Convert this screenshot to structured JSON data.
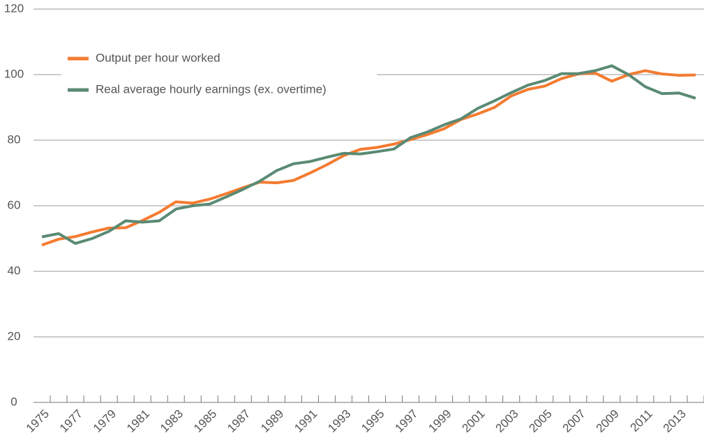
{
  "chart_data": {
    "type": "line",
    "categories": [
      "1975",
      null,
      "1977",
      null,
      "1979",
      null,
      "1981",
      null,
      "1983",
      null,
      "1985",
      null,
      "1987",
      null,
      "1989",
      null,
      "1991",
      null,
      "1993",
      null,
      "1995",
      null,
      "1997",
      null,
      "1999",
      null,
      "2001",
      null,
      "2003",
      null,
      "2005",
      null,
      "2007",
      null,
      "2009",
      null,
      "2011",
      null,
      "2013",
      null
    ],
    "series": [
      {
        "name": "Output per hour worked",
        "color": "#f47b30",
        "values": [
          48,
          49.8,
          50.6,
          52,
          53.2,
          53.3,
          55.5,
          58,
          61.2,
          60.8,
          62,
          63.7,
          65.5,
          67.2,
          67,
          67.7,
          70,
          72.5,
          75.3,
          77.2,
          77.8,
          78.8,
          80.2,
          81.7,
          83.5,
          86.3,
          88,
          90,
          93.5,
          95.5,
          96.5,
          98.8,
          100.2,
          100.5,
          98,
          100,
          101.2,
          100.2,
          99.8,
          99.9
        ]
      },
      {
        "name": "Real average hourly earnings (ex. overtime)",
        "color": "#5a8a74",
        "values": [
          50.5,
          51.5,
          48.5,
          50,
          52.2,
          55.4,
          55,
          55.4,
          59,
          60,
          60.5,
          62.7,
          65,
          67.5,
          70.7,
          72.8,
          73.5,
          74.8,
          76,
          75.8,
          76.5,
          77.3,
          80.8,
          82.5,
          84.7,
          86.5,
          89.7,
          92,
          94.5,
          96.8,
          98.2,
          100.3,
          100.3,
          101.2,
          102.7,
          100,
          96.3,
          94.2,
          94.4,
          92.8
        ]
      }
    ],
    "ylim": [
      0,
      120
    ],
    "yticks": [
      0,
      20,
      40,
      60,
      80,
      100,
      120
    ],
    "grid": true,
    "legend": "upper left"
  }
}
